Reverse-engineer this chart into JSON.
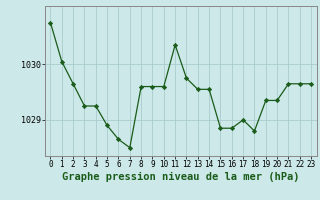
{
  "x": [
    0,
    1,
    2,
    3,
    4,
    5,
    6,
    7,
    8,
    9,
    10,
    11,
    12,
    13,
    14,
    15,
    16,
    17,
    18,
    19,
    20,
    21,
    22,
    23
  ],
  "y": [
    1030.75,
    1030.05,
    1029.65,
    1029.25,
    1029.25,
    1028.9,
    1028.65,
    1028.5,
    1029.6,
    1029.6,
    1029.6,
    1030.35,
    1029.75,
    1029.55,
    1029.55,
    1028.85,
    1028.85,
    1029.0,
    1028.8,
    1029.35,
    1029.35,
    1029.65,
    1029.65,
    1029.65
  ],
  "line_color": "#1a5c1a",
  "marker_color": "#1a5c1a",
  "bg_color": "#cce8e8",
  "grid_color": "#aacccc",
  "axis_color": "#888888",
  "title": "Graphe pression niveau de la mer (hPa)",
  "title_color": "#1a5c1a",
  "xlim": [
    -0.5,
    23.5
  ],
  "ylim": [
    1028.35,
    1031.05
  ],
  "yticks": [
    1029,
    1030
  ],
  "xticks": [
    0,
    1,
    2,
    3,
    4,
    5,
    6,
    7,
    8,
    9,
    10,
    11,
    12,
    13,
    14,
    15,
    16,
    17,
    18,
    19,
    20,
    21,
    22,
    23
  ],
  "tick_fontsize": 5.5,
  "title_fontsize": 7.5
}
